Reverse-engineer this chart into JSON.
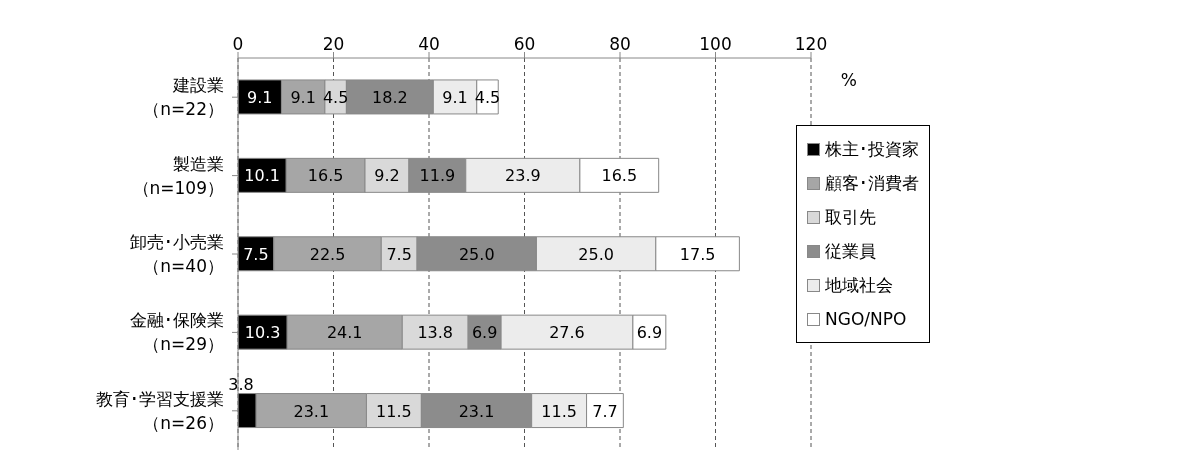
{
  "chart_data": {
    "type": "bar",
    "orientation": "horizontal",
    "stacked": true,
    "xlabel": "%",
    "categories": [
      "建設業（n=22）",
      "製造業（n=109）",
      "卸売･小売業（n=40）",
      "金融･保険業（n=29）",
      "教育･学習支援業（n=26）"
    ],
    "series": [
      {
        "name": "株主･投資家",
        "color": "#000000",
        "values": [
          9.1,
          10.1,
          7.5,
          10.3,
          3.8
        ],
        "value_labels": [
          "9.1",
          "10.1",
          "7.5",
          "10.3",
          "3.8"
        ]
      },
      {
        "name": "顧客･消費者",
        "color": "#a6a6a6",
        "values": [
          9.1,
          16.5,
          22.5,
          24.1,
          23.1
        ],
        "value_labels": [
          "9.1",
          "16.5",
          "22.5",
          "24.1",
          "23.1"
        ]
      },
      {
        "name": "取引先",
        "color": "#d9d9d9",
        "values": [
          4.5,
          9.2,
          7.5,
          13.8,
          11.5
        ],
        "value_labels": [
          "4.5",
          "9.2",
          "7.5",
          "13.8",
          "11.5"
        ]
      },
      {
        "name": "従業員",
        "color": "#8c8c8c",
        "values": [
          18.2,
          11.9,
          25.0,
          6.9,
          23.1
        ],
        "value_labels": [
          "18.2",
          "11.9",
          "25.0",
          "6.9",
          "23.1"
        ]
      },
      {
        "name": "地域社会",
        "color": "#ececec",
        "values": [
          9.1,
          23.9,
          25.0,
          27.6,
          11.5
        ],
        "value_labels": [
          "9.1",
          "23.9",
          "25.0",
          "27.6",
          "11.5"
        ]
      },
      {
        "name": "NGO/NPO",
        "color": "#ffffff",
        "values": [
          4.5,
          16.5,
          17.5,
          6.9,
          7.7
        ],
        "value_labels": [
          "4.5",
          "16.5",
          "17.5",
          "6.9",
          "7.7"
        ]
      }
    ],
    "xlim": [
      0,
      120
    ],
    "xticks": [
      0,
      20,
      40,
      60,
      80,
      100,
      120
    ],
    "grid": "x",
    "legend": "right"
  }
}
